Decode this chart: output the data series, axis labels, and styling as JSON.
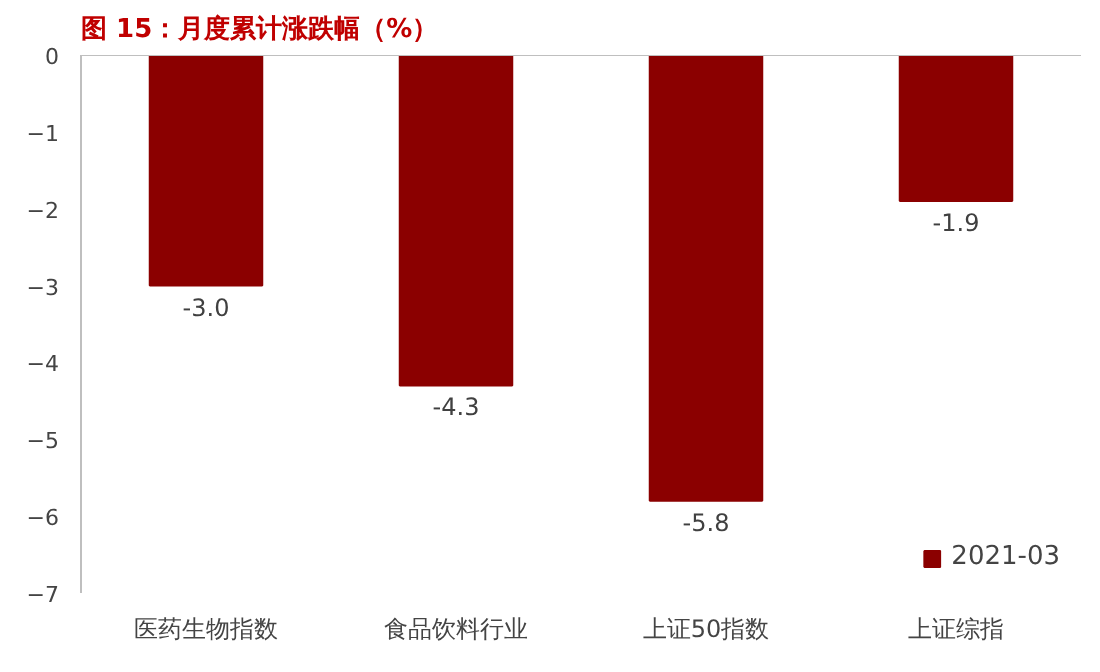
{
  "chart_data": {
    "type": "bar",
    "title": "图 15：月度累计涨跌幅（%）",
    "categories": [
      "医药生物指数",
      "食品饮料行业",
      "上证50指数",
      "上证综指"
    ],
    "series": [
      {
        "name": "2021-03",
        "color": "#8b0000",
        "values": [
          -3.0,
          -4.3,
          -5.8,
          -1.9
        ]
      }
    ],
    "value_labels": [
      "-3.0",
      "-4.3",
      "-5.8",
      "-1.9"
    ],
    "ylim": [
      -7,
      0
    ],
    "yticks": [
      -7,
      -6,
      -5,
      -4,
      -3,
      -2,
      -1,
      0
    ],
    "grid": false,
    "legend": "bottom right"
  }
}
